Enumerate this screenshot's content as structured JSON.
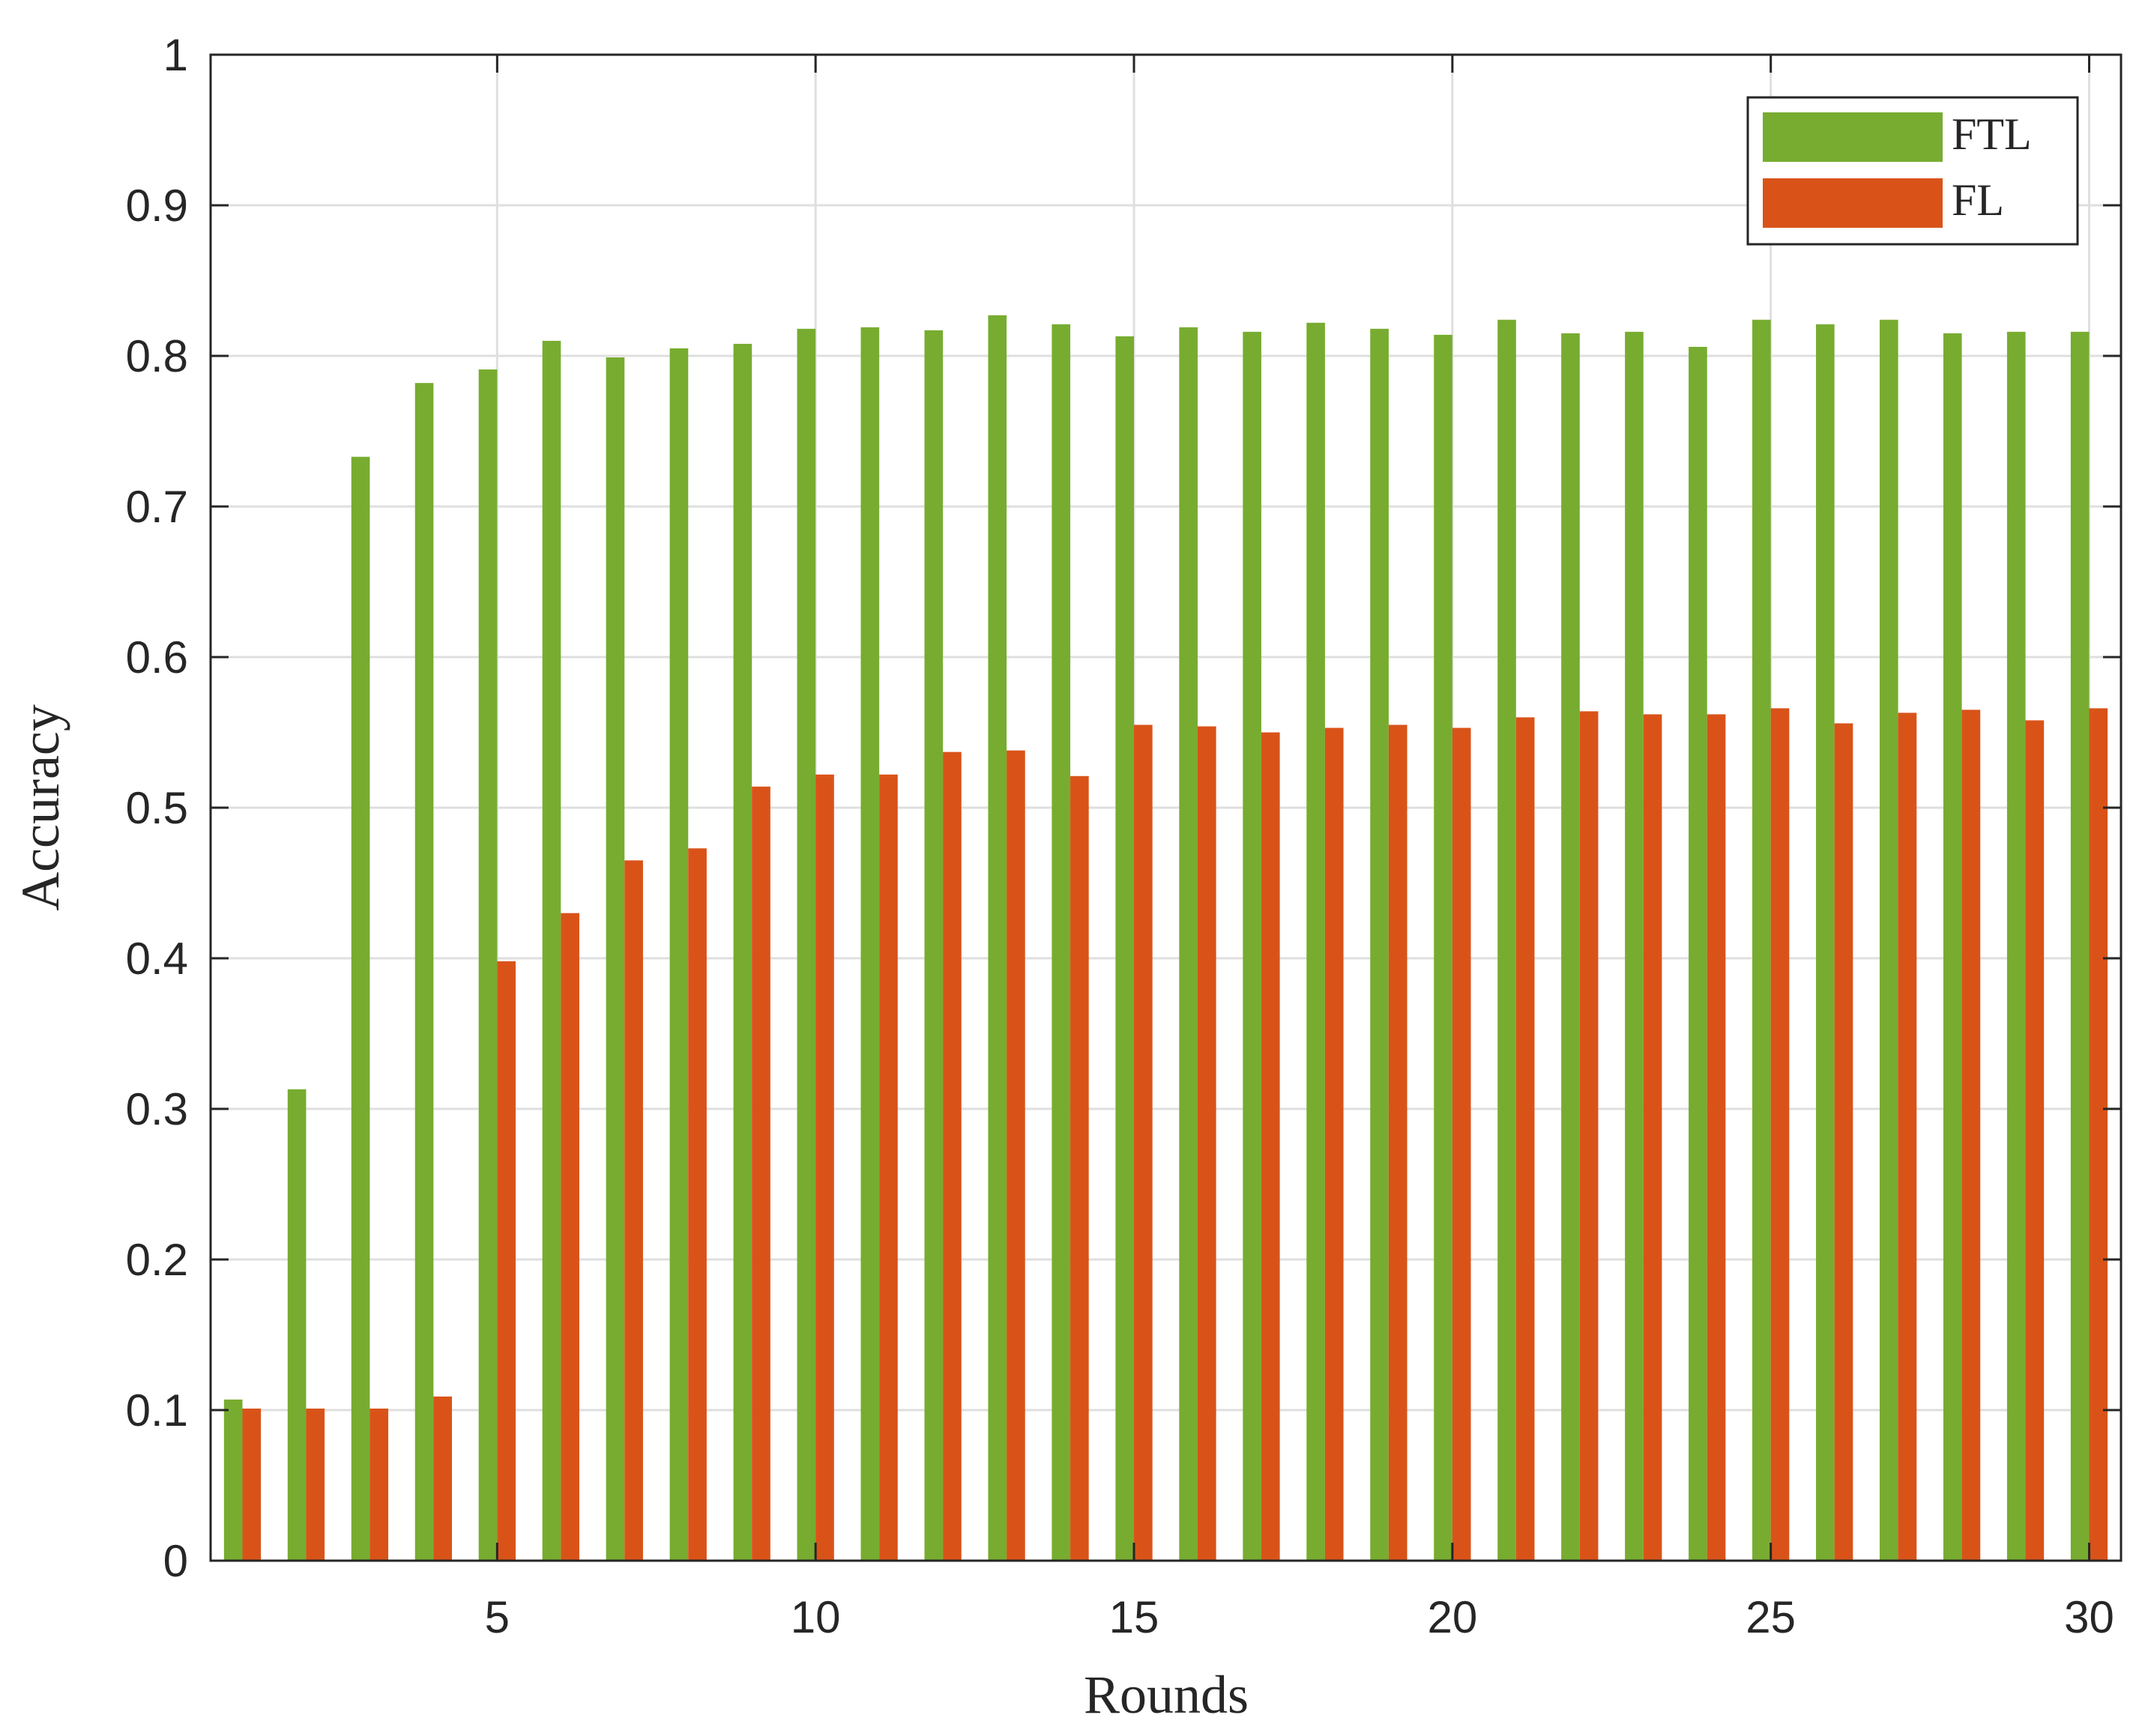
{
  "chart_data": {
    "type": "bar",
    "xlabel": "Rounds",
    "ylabel": "Accuracy",
    "xlim": [
      0.5,
      30.5
    ],
    "ylim": [
      0,
      1
    ],
    "grid": true,
    "legend_position": "top-right",
    "x": [
      1,
      2,
      3,
      4,
      5,
      6,
      7,
      8,
      9,
      10,
      11,
      12,
      13,
      14,
      15,
      16,
      17,
      18,
      19,
      20,
      21,
      22,
      23,
      24,
      25,
      26,
      27,
      28,
      29,
      30
    ],
    "x_ticks": [
      5,
      10,
      15,
      20,
      25,
      30
    ],
    "x_tick_labels": [
      "5",
      "10",
      "15",
      "20",
      "25",
      "30"
    ],
    "y_ticks": [
      0,
      0.1,
      0.2,
      0.3,
      0.4,
      0.5,
      0.6,
      0.7,
      0.8,
      0.9,
      1
    ],
    "y_tick_labels": [
      "0",
      "0.1",
      "0.2",
      "0.3",
      "0.4",
      "0.5",
      "0.6",
      "0.7",
      "0.8",
      "0.9",
      "1"
    ],
    "series": [
      {
        "name": "FTL",
        "color": "#77AC30",
        "values": [
          0.107,
          0.313,
          0.733,
          0.782,
          0.791,
          0.81,
          0.799,
          0.805,
          0.808,
          0.818,
          0.819,
          0.817,
          0.827,
          0.821,
          0.813,
          0.819,
          0.816,
          0.822,
          0.818,
          0.814,
          0.824,
          0.815,
          0.816,
          0.806,
          0.824,
          0.821,
          0.824,
          0.815,
          0.816,
          0.816
        ]
      },
      {
        "name": "FL",
        "color": "#D95319",
        "values": [
          0.101,
          0.101,
          0.101,
          0.109,
          0.398,
          0.43,
          0.465,
          0.473,
          0.514,
          0.522,
          0.522,
          0.537,
          0.538,
          0.521,
          0.555,
          0.554,
          0.55,
          0.553,
          0.555,
          0.553,
          0.56,
          0.564,
          0.562,
          0.562,
          0.566,
          0.556,
          0.563,
          0.565,
          0.558,
          0.566
        ]
      }
    ]
  }
}
